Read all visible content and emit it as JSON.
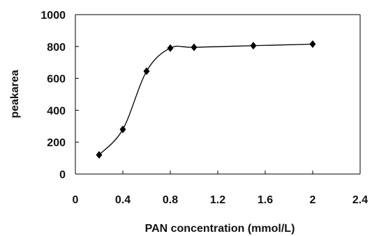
{
  "chart_data": {
    "type": "line",
    "title": "",
    "xlabel": "PAN concentration (mmol/L)",
    "ylabel": "peakarea",
    "xlim": [
      0,
      2.4
    ],
    "ylim": [
      0,
      1000
    ],
    "x_ticks": [
      0,
      0.4,
      0.8,
      1.2,
      1.6,
      2,
      2.4
    ],
    "x_tick_labels": [
      "0",
      "0.4",
      "0.8",
      "1.2",
      "1.6",
      "2",
      "2.4"
    ],
    "y_ticks": [
      0,
      200,
      400,
      600,
      800,
      1000
    ],
    "y_tick_labels": [
      "0",
      "200",
      "400",
      "600",
      "800",
      "1000"
    ],
    "grid": false,
    "legend": "none",
    "marker": "diamond",
    "line": "smooth",
    "series": [
      {
        "x": [
          0.2,
          0.4,
          0.6,
          0.8,
          1.0,
          1.5,
          2.0
        ],
        "y": [
          120,
          280,
          645,
          790,
          795,
          805,
          815
        ]
      }
    ],
    "colors": {
      "line": "#000000",
      "marker": "#000000",
      "axis": "#000000"
    }
  }
}
